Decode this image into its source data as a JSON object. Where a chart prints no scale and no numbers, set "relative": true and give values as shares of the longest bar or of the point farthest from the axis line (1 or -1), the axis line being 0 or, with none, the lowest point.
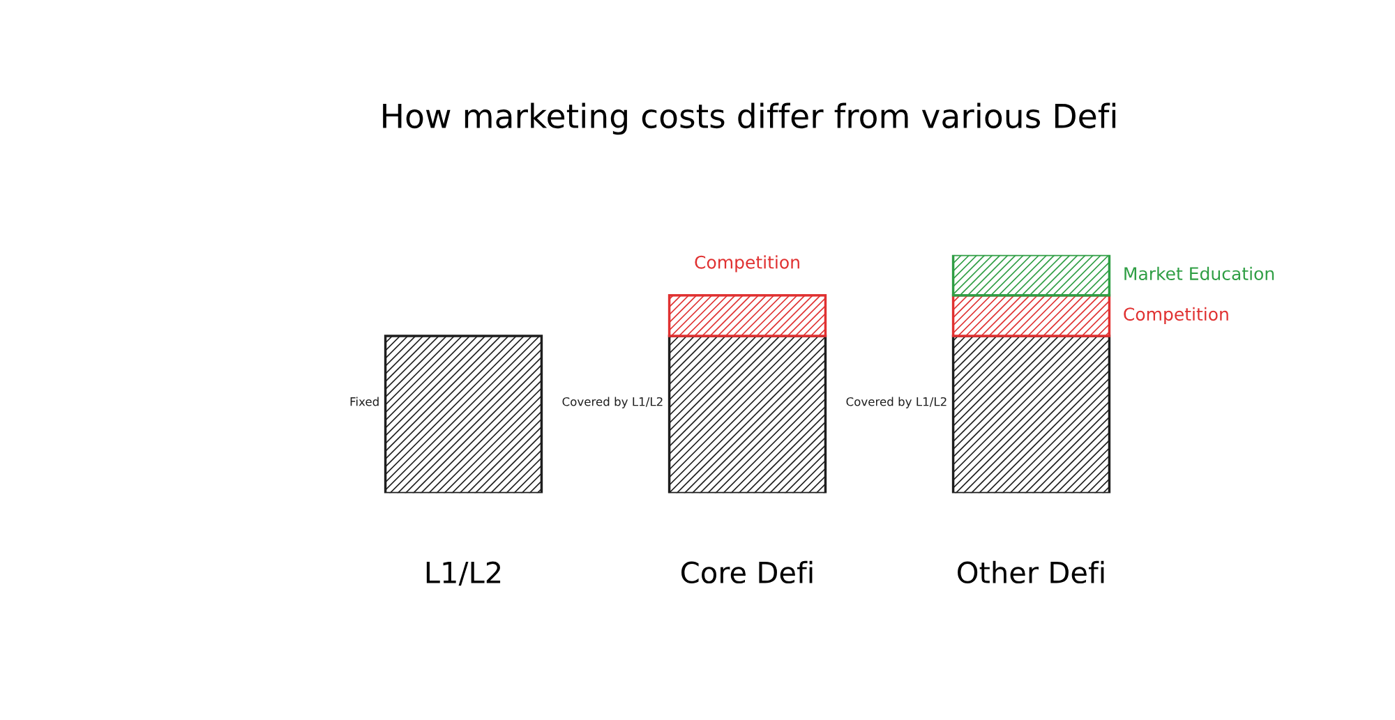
{
  "chart_data": {
    "type": "bar",
    "title": "How marketing costs differ from various Defi",
    "relative": true,
    "stacked": true,
    "categories": [
      "L1/L2",
      "Core Defi",
      "Other Defi"
    ],
    "series": [
      {
        "color": "#1e1e1e",
        "values": [
          0.66,
          0.66,
          0.66
        ]
      },
      {
        "color": "#e03131",
        "values": [
          null,
          0.17,
          0.17
        ]
      },
      {
        "color": "#2f9e44",
        "values": [
          null,
          null,
          0.17
        ]
      }
    ],
    "annotations": [
      "Fixed",
      "Covered by L1/L2",
      "Competition",
      "Covered by L1/L2",
      "Competition",
      "Market Education"
    ],
    "grid": false
  }
}
